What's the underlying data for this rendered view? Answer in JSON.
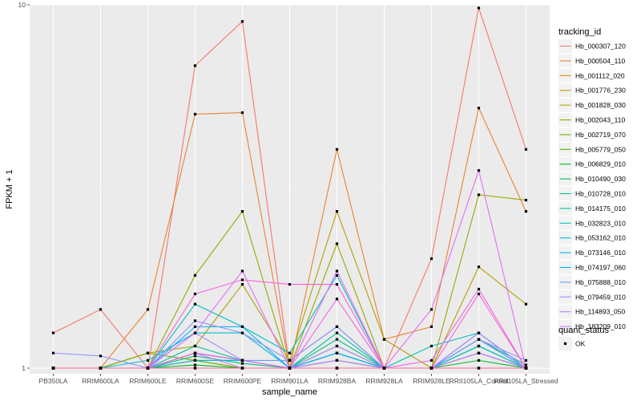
{
  "chart_data": {
    "type": "line",
    "xlabel": "sample_name",
    "ylabel": "FPKM + 1",
    "y_scale": "log10",
    "ylim": [
      0.965,
      10
    ],
    "y_ticks": [
      1,
      10
    ],
    "grid": true,
    "legend_position": "right",
    "categories": [
      "PB350LA",
      "RRIM600LA",
      "RRIM600LE",
      "RRIM600SE",
      "RRIM600PE",
      "RRIM901LA",
      "RRIM928BA",
      "RRIM928LA",
      "RRIM928LE",
      "RRII105LA_Control",
      "RRII105LA_Stressed"
    ],
    "legend_title": "tracking_id",
    "series": [
      {
        "name": "Hb_000307_120",
        "color": "#F8766D",
        "values": [
          1.25,
          1.45,
          1.0,
          6.8,
          9.0,
          1.0,
          1.0,
          1.0,
          2.0,
          9.8,
          4.0
        ]
      },
      {
        "name": "Hb_000504_110",
        "color": "#EA8331",
        "values": [
          1.0,
          1.0,
          1.45,
          5.0,
          5.05,
          1.0,
          4.0,
          1.2,
          1.3,
          5.2,
          2.7
        ]
      },
      {
        "name": "Hb_001112_020",
        "color": "#DB8E00",
        "values": [
          1.0,
          1.0,
          1.0,
          1.1,
          1.05,
          1.0,
          1.0,
          1.0,
          1.0,
          1.1,
          1.0
        ]
      },
      {
        "name": "Hb_001776_230",
        "color": "#C99800",
        "values": [
          1.0,
          1.0,
          1.0,
          1.05,
          1.0,
          1.0,
          1.0,
          1.0,
          1.0,
          1.0,
          1.0
        ]
      },
      {
        "name": "Hb_001828_030",
        "color": "#B3A000",
        "values": [
          1.0,
          1.0,
          1.1,
          1.15,
          1.7,
          1.05,
          2.7,
          1.2,
          1.0,
          1.9,
          1.5
        ]
      },
      {
        "name": "Hb_002043_110",
        "color": "#99A800",
        "values": [
          1.0,
          1.0,
          1.0,
          1.8,
          2.7,
          1.0,
          2.2,
          1.0,
          1.0,
          3.0,
          2.9
        ]
      },
      {
        "name": "Hb_002719_070",
        "color": "#7BAE00",
        "values": [
          1.0,
          1.0,
          1.1,
          1.05,
          1.05,
          1.0,
          1.05,
          1.0,
          1.0,
          1.1,
          1.0
        ]
      },
      {
        "name": "Hb_005779_050",
        "color": "#53B400",
        "values": [
          1.0,
          1.0,
          1.0,
          1.05,
          1.0,
          1.0,
          1.1,
          1.0,
          1.0,
          1.15,
          1.0
        ]
      },
      {
        "name": "Hb_006829_010",
        "color": "#00B81F",
        "values": [
          1.0,
          1.0,
          1.0,
          1.02,
          1.0,
          1.0,
          1.05,
          1.0,
          1.0,
          1.05,
          1.0
        ]
      },
      {
        "name": "Hb_010490_030",
        "color": "#00BC56",
        "values": [
          1.0,
          1.0,
          1.0,
          1.1,
          1.05,
          1.0,
          1.15,
          1.0,
          1.0,
          1.15,
          1.0
        ]
      },
      {
        "name": "Hb_010728_010",
        "color": "#00BF7D",
        "values": [
          1.0,
          1.0,
          1.0,
          1.08,
          1.03,
          1.0,
          1.2,
          1.0,
          1.0,
          1.2,
          1.02
        ]
      },
      {
        "name": "Hb_014175_010",
        "color": "#00C19F",
        "values": [
          1.0,
          1.0,
          1.0,
          1.15,
          1.05,
          1.0,
          1.25,
          1.0,
          1.0,
          1.2,
          1.0
        ]
      },
      {
        "name": "Hb_032823_010",
        "color": "#00C0BA",
        "values": [
          1.0,
          1.0,
          1.0,
          1.5,
          1.3,
          1.1,
          1.8,
          1.0,
          1.15,
          1.25,
          1.0
        ]
      },
      {
        "name": "Hb_053162_010",
        "color": "#00BCD4",
        "values": [
          1.0,
          1.0,
          1.05,
          1.25,
          1.25,
          1.0,
          1.1,
          1.0,
          1.0,
          1.15,
          1.0
        ]
      },
      {
        "name": "Hb_073146_010",
        "color": "#00B5EA",
        "values": [
          1.0,
          1.0,
          1.0,
          1.05,
          1.05,
          1.0,
          1.05,
          1.0,
          1.0,
          1.1,
          1.0
        ]
      },
      {
        "name": "Hb_074197_060",
        "color": "#00ABFD",
        "values": [
          1.0,
          1.0,
          1.0,
          1.3,
          1.3,
          1.0,
          1.1,
          1.0,
          1.0,
          1.25,
          1.0
        ]
      },
      {
        "name": "Hb_075888_010",
        "color": "#619CFF",
        "values": [
          1.0,
          1.0,
          1.0,
          1.1,
          1.05,
          1.05,
          1.3,
          1.0,
          1.0,
          1.2,
          1.0
        ]
      },
      {
        "name": "Hb_079459_010",
        "color": "#8F91FF",
        "values": [
          1.1,
          1.08,
          1.0,
          1.35,
          1.25,
          1.05,
          1.3,
          1.0,
          1.0,
          1.2,
          1.05
        ]
      },
      {
        "name": "Hb_114893_050",
        "color": "#B385FF",
        "values": [
          1.0,
          1.0,
          1.0,
          1.25,
          1.05,
          1.0,
          1.15,
          1.0,
          1.0,
          1.25,
          1.0
        ]
      },
      {
        "name": "Hb_183209_010",
        "color": "#CF78FF",
        "values": [
          1.0,
          1.0,
          1.0,
          1.1,
          1.0,
          1.0,
          1.05,
          1.0,
          1.0,
          1.1,
          1.0
        ]
      },
      {
        "name": "",
        "color": "#E36EF6",
        "values": [
          1.0,
          1.0,
          1.0,
          1.25,
          1.85,
          1.0,
          1.85,
          1.0,
          1.45,
          3.5,
          1.0
        ]
      },
      {
        "name": "",
        "color": "#F066EA",
        "values": [
          1.0,
          1.0,
          1.0,
          1.1,
          1.05,
          1.0,
          1.55,
          1.0,
          1.05,
          1.65,
          1.0
        ]
      },
      {
        "name": "",
        "color": "#FA62DB",
        "values": [
          1.0,
          1.0,
          1.0,
          1.6,
          1.75,
          1.7,
          1.7,
          1.0,
          1.0,
          1.6,
          1.0
        ]
      },
      {
        "name": "",
        "color": "#FF61C9",
        "values": [
          1.0,
          1.0,
          1.0,
          1.0,
          1.0,
          1.0,
          1.0,
          1.0,
          1.0,
          1.0,
          1.0
        ]
      },
      {
        "name": "",
        "color": "#FF64B3",
        "values": [
          1.0,
          1.0,
          1.0,
          1.0,
          1.0,
          1.0,
          1.0,
          1.0,
          1.0,
          1.0,
          1.0
        ]
      },
      {
        "name": "",
        "color": "#FF6A98",
        "values": [
          1.0,
          1.0,
          1.0,
          1.0,
          1.0,
          1.0,
          1.0,
          1.0,
          1.0,
          1.0,
          1.0
        ]
      }
    ],
    "shape_legend": {
      "title": "quant_status",
      "items": [
        {
          "label": "OK",
          "symbol": "square"
        }
      ]
    }
  }
}
